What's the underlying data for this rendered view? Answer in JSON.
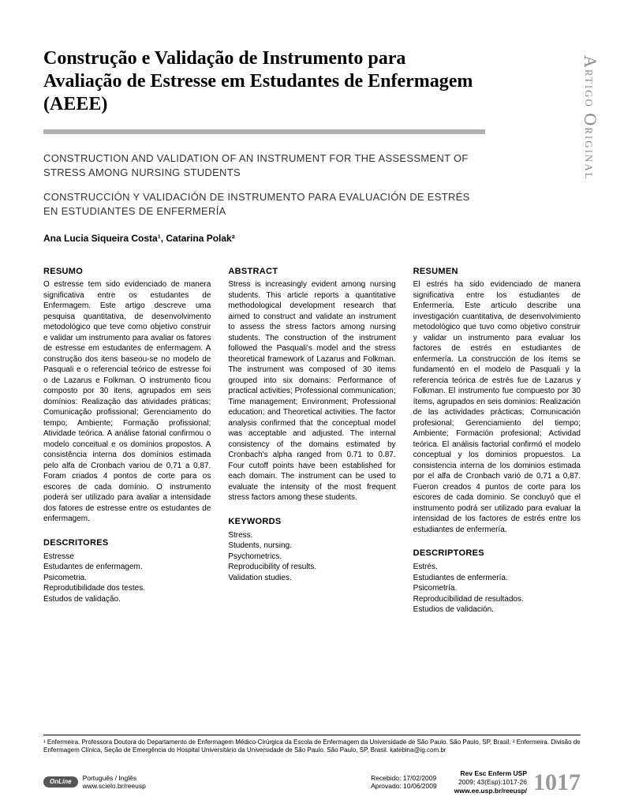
{
  "sideLabel": {
    "text": "Artigo Original"
  },
  "titleMain": "Construção e Validação de Instrumento para Avaliação de Estresse em Estudantes de Enfermagem (AEEE)",
  "titleEn": "CONSTRUCTION AND VALIDATION OF AN INSTRUMENT FOR THE ASSESSMENT OF STRESS AMONG NURSING STUDENTS",
  "titleEs": "CONSTRUCCIÓN Y VALIDACIÓN DE INSTRUMENTO PARA EVALUACIÓN DE ESTRÉS EN ESTUDIANTES DE ENFERMERÍA",
  "authors": "Ana Lucia Siqueira Costa¹, Catarina Polak²",
  "cols": {
    "pt": {
      "heading1": "RESUMO",
      "body": "O estresse tem sido evidenciado de manera significativa entre os estudantes de Enfermagem. Este artigo descreve uma pesquisa quantitativa, de desenvolvimento metodológico que teve como objetivo construir e validar um instrumento para avaliar os fatores de estresse em estudantes de enfermagem. A construção dos itens baseou-se no modelo de Pasquali e o referencial teórico de estresse foi o de Lazarus e Folkman. O instrumento ficou composto por 30 itens, agrupados em seis domínios: Realização das atividades práticas; Comunicação profissional; Gerenciamento do tempo; Ambiente; Formação profissional; Atividade teórica. A análise fatorial confirmou o modelo conceitual e os domínios propostos. A consistência interna dos domínios estimada pelo alfa de Cronbach variou de 0,71 a 0,87. Foram criados 4 pontos de corte para os escores de cada domínio. O instrumento poderá ser utilizado para avaliar a intensidade dos fatores de estresse entre os estudantes de enfermagem.",
      "heading2": "DESCRITORES",
      "keywords": [
        "Estresse",
        "Estudantes de enfermagem.",
        "Psicometria.",
        "Reprodutibilidade dos testes.",
        "Estudos de validação."
      ]
    },
    "en": {
      "heading1": "ABSTRACT",
      "body": "Stress is increasingly evident among nursing students. This article reports a quantitative methodological development research that aimed to construct and validate an instrument to assess the stress factors among nursing students. The construction of the instrument followed the Pasquali's model and the stress theoretical framework of Lazarus and Folkman. The instrument was composed of 30 items grouped into six domains: Performance of practical activities; Professional communication; Time management; Environment; Professional education; and Theoretical activities. The factor analysis confirmed that the conceptual model was acceptable and adjusted. The internal consistency of the domains estimated by Cronbach's alpha ranged from 0.71 to 0.87. Four cutoff points have been established for each domain. The instrument can be used to evaluate the intensity of the most frequent stress factors among these students.",
      "heading2": "KEYWORDS",
      "keywords": [
        "Stress.",
        "Students, nursing.",
        "Psychometrics.",
        "Reproducibility of results.",
        "Validation studies."
      ]
    },
    "es": {
      "heading1": "RESUMEN",
      "body": "El estrés ha sido evidenciado de manera significativa entre los estudiantes de Enfermería. Este artículo describe una investigación cuantitativa, de desenvolvimiento metodológico que tuvo como objetivo construir y validar un instrumento para evaluar los factores de estrés en estudiantes de enfermería. La construcción de los ítems se fundamentó en el modelo de Pasquali y la referencia teórica de estrés fue de Lazarus y Folkman. El instrumento fue compuesto por 30 ítems, agrupados en seis dominios: Realización de las actividades prácticas; Comunicación profesional; Gerenciamiento del tiempo; Ambiente; Formación profesional; Actividad teórica. El análisis factorial confirmó el modelo conceptual y los dominios propuestos. La consistencia interna de los dominios estimada por el alfa de Cronbach varió de 0,71 a 0,87. Fueron creados 4 puntos de corte para los escores de cada dominio. Se concluyó que el instrumento podrá ser utilizado para evaluar la intensidad de los factores de estrés entre los estudiantes de enfermería.",
      "heading2": "DESCRIPTORES",
      "keywords": [
        "Estrés.",
        "Estudiantes de enfermería.",
        "Psicometría.",
        "Reproducibilidad de resultados.",
        "Estudios de validación."
      ]
    }
  },
  "footnotes": "¹ Enfermeira. Professora Doutora do Departamento de Enfermagem Médico-Cirúrgica da Escola de Enfermagem da Universidade de São Paulo. São Paulo, SP, Brasil.  ² Enfermeira. Divisão de Enfermagem Clínica, Seção de Emergência do Hospital Universitário da Universidade de São Paulo. São Paulo, SP, Brasil. katebina@ig.com.br",
  "footer": {
    "online": "OnLine",
    "lang": "Português / Inglês",
    "site": "www.scielo.br/reeusp",
    "received": "Recebido: 17/02/2009",
    "approved": "Aprovado: 10/06/2009",
    "journal1": "Rev Esc Enferm USP",
    "journal2": "2009; 43(Esp):1017-26",
    "journal3": "www.ee.usp.br/reeusp/",
    "page": "1017"
  },
  "colors": {
    "rule": "#b0b0b0",
    "sidelabel": "#888888",
    "pagenum": "#999999"
  }
}
